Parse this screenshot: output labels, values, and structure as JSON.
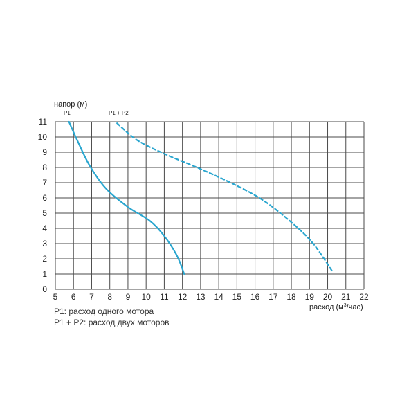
{
  "chart_data": {
    "type": "line",
    "title": "",
    "ylabel": "напор (м)",
    "xlabel_prefix": "расход (м",
    "xlabel_sup": "3",
    "xlabel_suffix": "/час)",
    "xlim": [
      5,
      22
    ],
    "ylim": [
      0,
      11
    ],
    "x_ticks": [
      "5",
      "6",
      "7",
      "8",
      "9",
      "10",
      "11",
      "12",
      "13",
      "14",
      "15",
      "16",
      "17",
      "18",
      "19",
      "20",
      "21",
      "22"
    ],
    "y_ticks": [
      "0",
      "1",
      "2",
      "3",
      "4",
      "5",
      "6",
      "7",
      "8",
      "9",
      "10",
      "11"
    ],
    "grid": true,
    "series": [
      {
        "name": "P1",
        "style": "solid",
        "color": "#2aa6cf",
        "x": [
          5.75,
          6.2,
          6.9,
          7.8,
          9.0,
          10.2,
          11.0,
          11.7,
          12.1
        ],
        "y": [
          11.0,
          9.8,
          8.1,
          6.6,
          5.4,
          4.5,
          3.5,
          2.2,
          1.0
        ]
      },
      {
        "name": "P1 + P2",
        "style": "dashed",
        "color": "#2aa6cf",
        "x": [
          8.4,
          9.5,
          11.0,
          13.0,
          15.0,
          16.5,
          18.0,
          19.2,
          20.3
        ],
        "y": [
          10.9,
          9.8,
          8.9,
          7.9,
          6.8,
          5.8,
          4.4,
          3.0,
          1.1
        ]
      }
    ]
  },
  "legend_notes": [
    "P1: расход одного мотора",
    "P1 + P2: расход двух моторов"
  ]
}
